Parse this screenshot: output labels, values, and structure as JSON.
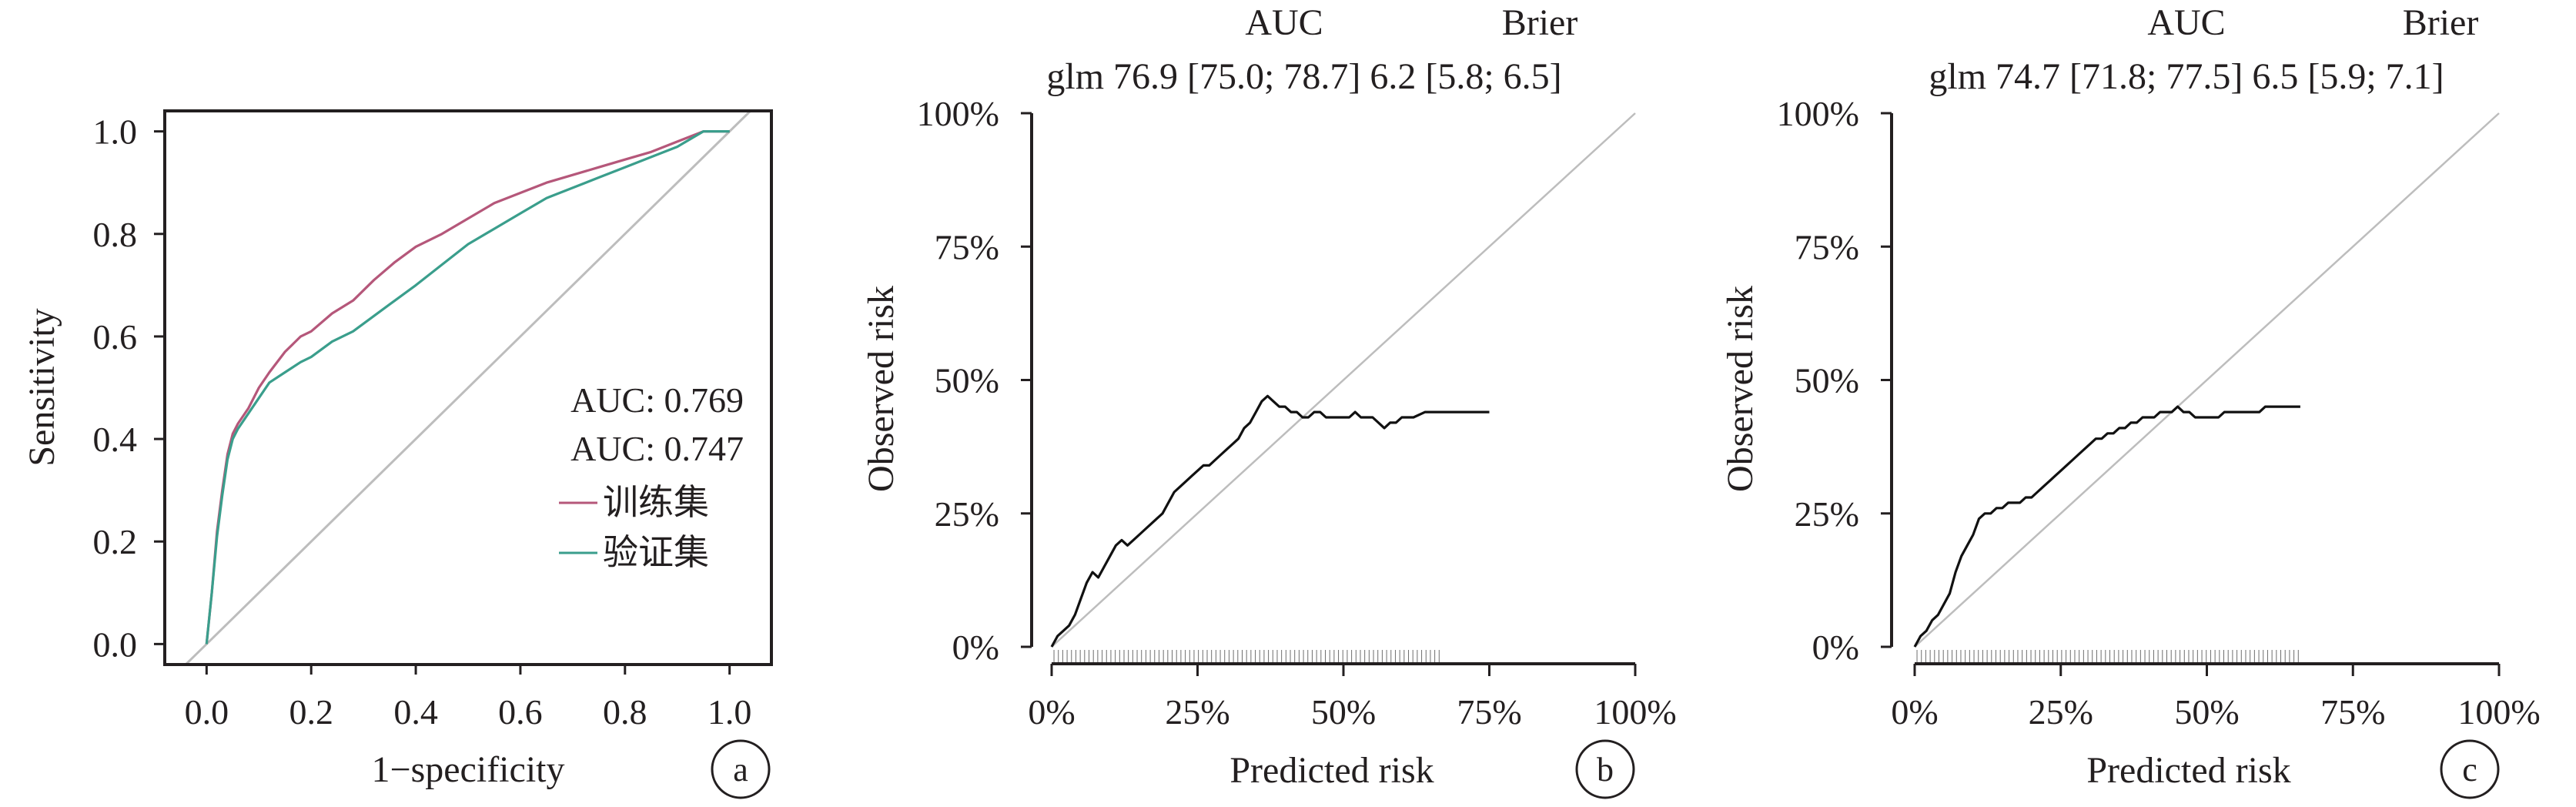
{
  "colors": {
    "text": "#231f20",
    "axis": "#231f20",
    "diagonal": "#bdbdbd",
    "train": "#b5577a",
    "valid": "#3a9e8c",
    "calibration": "#111111"
  },
  "chart_data": [
    {
      "type": "line",
      "panel_label": "a",
      "xlabel": "1−specificity",
      "ylabel": "Sensitivity",
      "xlim": [
        -0.08,
        1.08
      ],
      "ylim": [
        -0.04,
        1.04
      ],
      "xticks": [
        0.0,
        0.2,
        0.4,
        0.6,
        0.8,
        1.0
      ],
      "xtick_labels": [
        "0.0",
        "0.2",
        "0.4",
        "0.6",
        "0.8",
        "1.0"
      ],
      "yticks": [
        0.0,
        0.2,
        0.4,
        0.6,
        0.8,
        1.0
      ],
      "ytick_labels": [
        "0.0",
        "0.2",
        "0.4",
        "0.6",
        "0.8",
        "1.0"
      ],
      "grid": false,
      "reference_line": [
        [
          -0.04,
          -0.04
        ],
        [
          1.04,
          1.04
        ]
      ],
      "auc_labels": [
        "AUC: 0.769",
        "AUC: 0.747"
      ],
      "legend_position": "bottom-right",
      "series": [
        {
          "name": "训练集",
          "color_key": "train",
          "x": [
            0.0,
            0.01,
            0.02,
            0.03,
            0.04,
            0.05,
            0.06,
            0.08,
            0.1,
            0.12,
            0.15,
            0.18,
            0.2,
            0.24,
            0.28,
            0.32,
            0.36,
            0.4,
            0.45,
            0.5,
            0.55,
            0.6,
            0.65,
            0.7,
            0.75,
            0.8,
            0.85,
            0.9,
            0.95,
            1.0
          ],
          "y": [
            0.0,
            0.1,
            0.22,
            0.3,
            0.37,
            0.41,
            0.43,
            0.46,
            0.5,
            0.53,
            0.57,
            0.6,
            0.61,
            0.645,
            0.67,
            0.71,
            0.745,
            0.775,
            0.8,
            0.83,
            0.86,
            0.88,
            0.9,
            0.915,
            0.93,
            0.945,
            0.96,
            0.98,
            1.0,
            1.0
          ]
        },
        {
          "name": "验证集",
          "color_key": "valid",
          "x": [
            0.0,
            0.01,
            0.02,
            0.03,
            0.04,
            0.05,
            0.06,
            0.08,
            0.1,
            0.12,
            0.15,
            0.18,
            0.2,
            0.24,
            0.28,
            0.32,
            0.36,
            0.4,
            0.45,
            0.5,
            0.55,
            0.6,
            0.65,
            0.7,
            0.75,
            0.8,
            0.85,
            0.9,
            0.95,
            1.0
          ],
          "y": [
            0.0,
            0.1,
            0.21,
            0.29,
            0.36,
            0.4,
            0.42,
            0.45,
            0.48,
            0.51,
            0.53,
            0.55,
            0.56,
            0.59,
            0.61,
            0.64,
            0.67,
            0.7,
            0.74,
            0.78,
            0.81,
            0.84,
            0.87,
            0.89,
            0.91,
            0.93,
            0.95,
            0.97,
            1.0,
            1.0
          ]
        }
      ]
    },
    {
      "type": "line",
      "panel_label": "b",
      "header_auc": "AUC",
      "header_brier": "Brier",
      "model_row": "glm 76.9 [75.0; 78.7] 6.2 [5.8; 6.5]",
      "xlabel": "Predicted risk",
      "ylabel": "Observed risk",
      "xlim": [
        0,
        100
      ],
      "ylim": [
        0,
        100
      ],
      "xticks": [
        0,
        25,
        50,
        75,
        100
      ],
      "xtick_labels": [
        "0%",
        "25%",
        "50%",
        "75%",
        "100%"
      ],
      "yticks": [
        0,
        25,
        50,
        75,
        100
      ],
      "ytick_labels": [
        "0%",
        "25%",
        "50%",
        "75%",
        "100%"
      ],
      "grid": false,
      "reference_line": [
        [
          0,
          0
        ],
        [
          100,
          100
        ]
      ],
      "rug_range": [
        0,
        67
      ],
      "series": [
        {
          "name": "",
          "x": [
            0,
            1,
            2,
            3,
            4,
            5,
            6,
            7,
            8,
            9,
            10,
            11,
            12,
            13,
            14,
            15,
            16,
            17,
            18,
            19,
            20,
            21,
            22,
            23,
            24,
            25,
            26,
            27,
            28,
            29,
            30,
            31,
            32,
            33,
            34,
            35,
            36,
            37,
            38,
            39,
            40,
            41,
            42,
            43,
            44,
            45,
            46,
            47,
            48,
            49,
            50,
            51,
            52,
            53,
            54,
            55,
            56,
            57,
            58,
            59,
            60,
            62,
            64,
            66,
            68,
            70,
            72,
            74,
            75
          ],
          "y": [
            0,
            2,
            3,
            4,
            6,
            9,
            12,
            14,
            13,
            15,
            17,
            19,
            20,
            19,
            20,
            21,
            22,
            23,
            24,
            25,
            27,
            29,
            30,
            31,
            32,
            33,
            34,
            34,
            35,
            36,
            37,
            38,
            39,
            41,
            42,
            44,
            46,
            47,
            46,
            45,
            45,
            44,
            44,
            43,
            43,
            44,
            44,
            43,
            43,
            43,
            43,
            43,
            44,
            43,
            43,
            43,
            42,
            41,
            42,
            42,
            43,
            43,
            44,
            44,
            44,
            44,
            44,
            44,
            44
          ]
        }
      ]
    },
    {
      "type": "line",
      "panel_label": "c",
      "header_auc": "AUC",
      "header_brier": "Brier",
      "model_row": "glm 74.7 [71.8; 77.5] 6.5 [5.9; 7.1]",
      "xlabel": "Predicted risk",
      "ylabel": "Observed risk",
      "xlim": [
        0,
        100
      ],
      "ylim": [
        0,
        100
      ],
      "xticks": [
        0,
        25,
        50,
        75,
        100
      ],
      "xtick_labels": [
        "0%",
        "25%",
        "50%",
        "75%",
        "100%"
      ],
      "yticks": [
        0,
        25,
        50,
        75,
        100
      ],
      "ytick_labels": [
        "0%",
        "25%",
        "50%",
        "75%",
        "100%"
      ],
      "grid": false,
      "reference_line": [
        [
          0,
          0
        ],
        [
          100,
          100
        ]
      ],
      "rug_range": [
        0,
        66
      ],
      "series": [
        {
          "name": "",
          "x": [
            0,
            1,
            2,
            3,
            4,
            5,
            6,
            7,
            8,
            9,
            10,
            11,
            12,
            13,
            14,
            15,
            16,
            17,
            18,
            19,
            20,
            21,
            22,
            23,
            24,
            25,
            26,
            27,
            28,
            29,
            30,
            31,
            32,
            33,
            34,
            35,
            36,
            37,
            38,
            39,
            40,
            41,
            42,
            43,
            44,
            45,
            46,
            47,
            48,
            49,
            50,
            51,
            52,
            53,
            54,
            55,
            56,
            57,
            58,
            59,
            60,
            62,
            64,
            66
          ],
          "y": [
            0,
            2,
            3,
            5,
            6,
            8,
            10,
            14,
            17,
            19,
            21,
            24,
            25,
            25,
            26,
            26,
            27,
            27,
            27,
            28,
            28,
            29,
            30,
            31,
            32,
            33,
            34,
            35,
            36,
            37,
            38,
            39,
            39,
            40,
            40,
            41,
            41,
            42,
            42,
            43,
            43,
            43,
            44,
            44,
            44,
            45,
            44,
            44,
            43,
            43,
            43,
            43,
            43,
            44,
            44,
            44,
            44,
            44,
            44,
            44,
            45,
            45,
            45,
            45
          ]
        }
      ]
    }
  ]
}
